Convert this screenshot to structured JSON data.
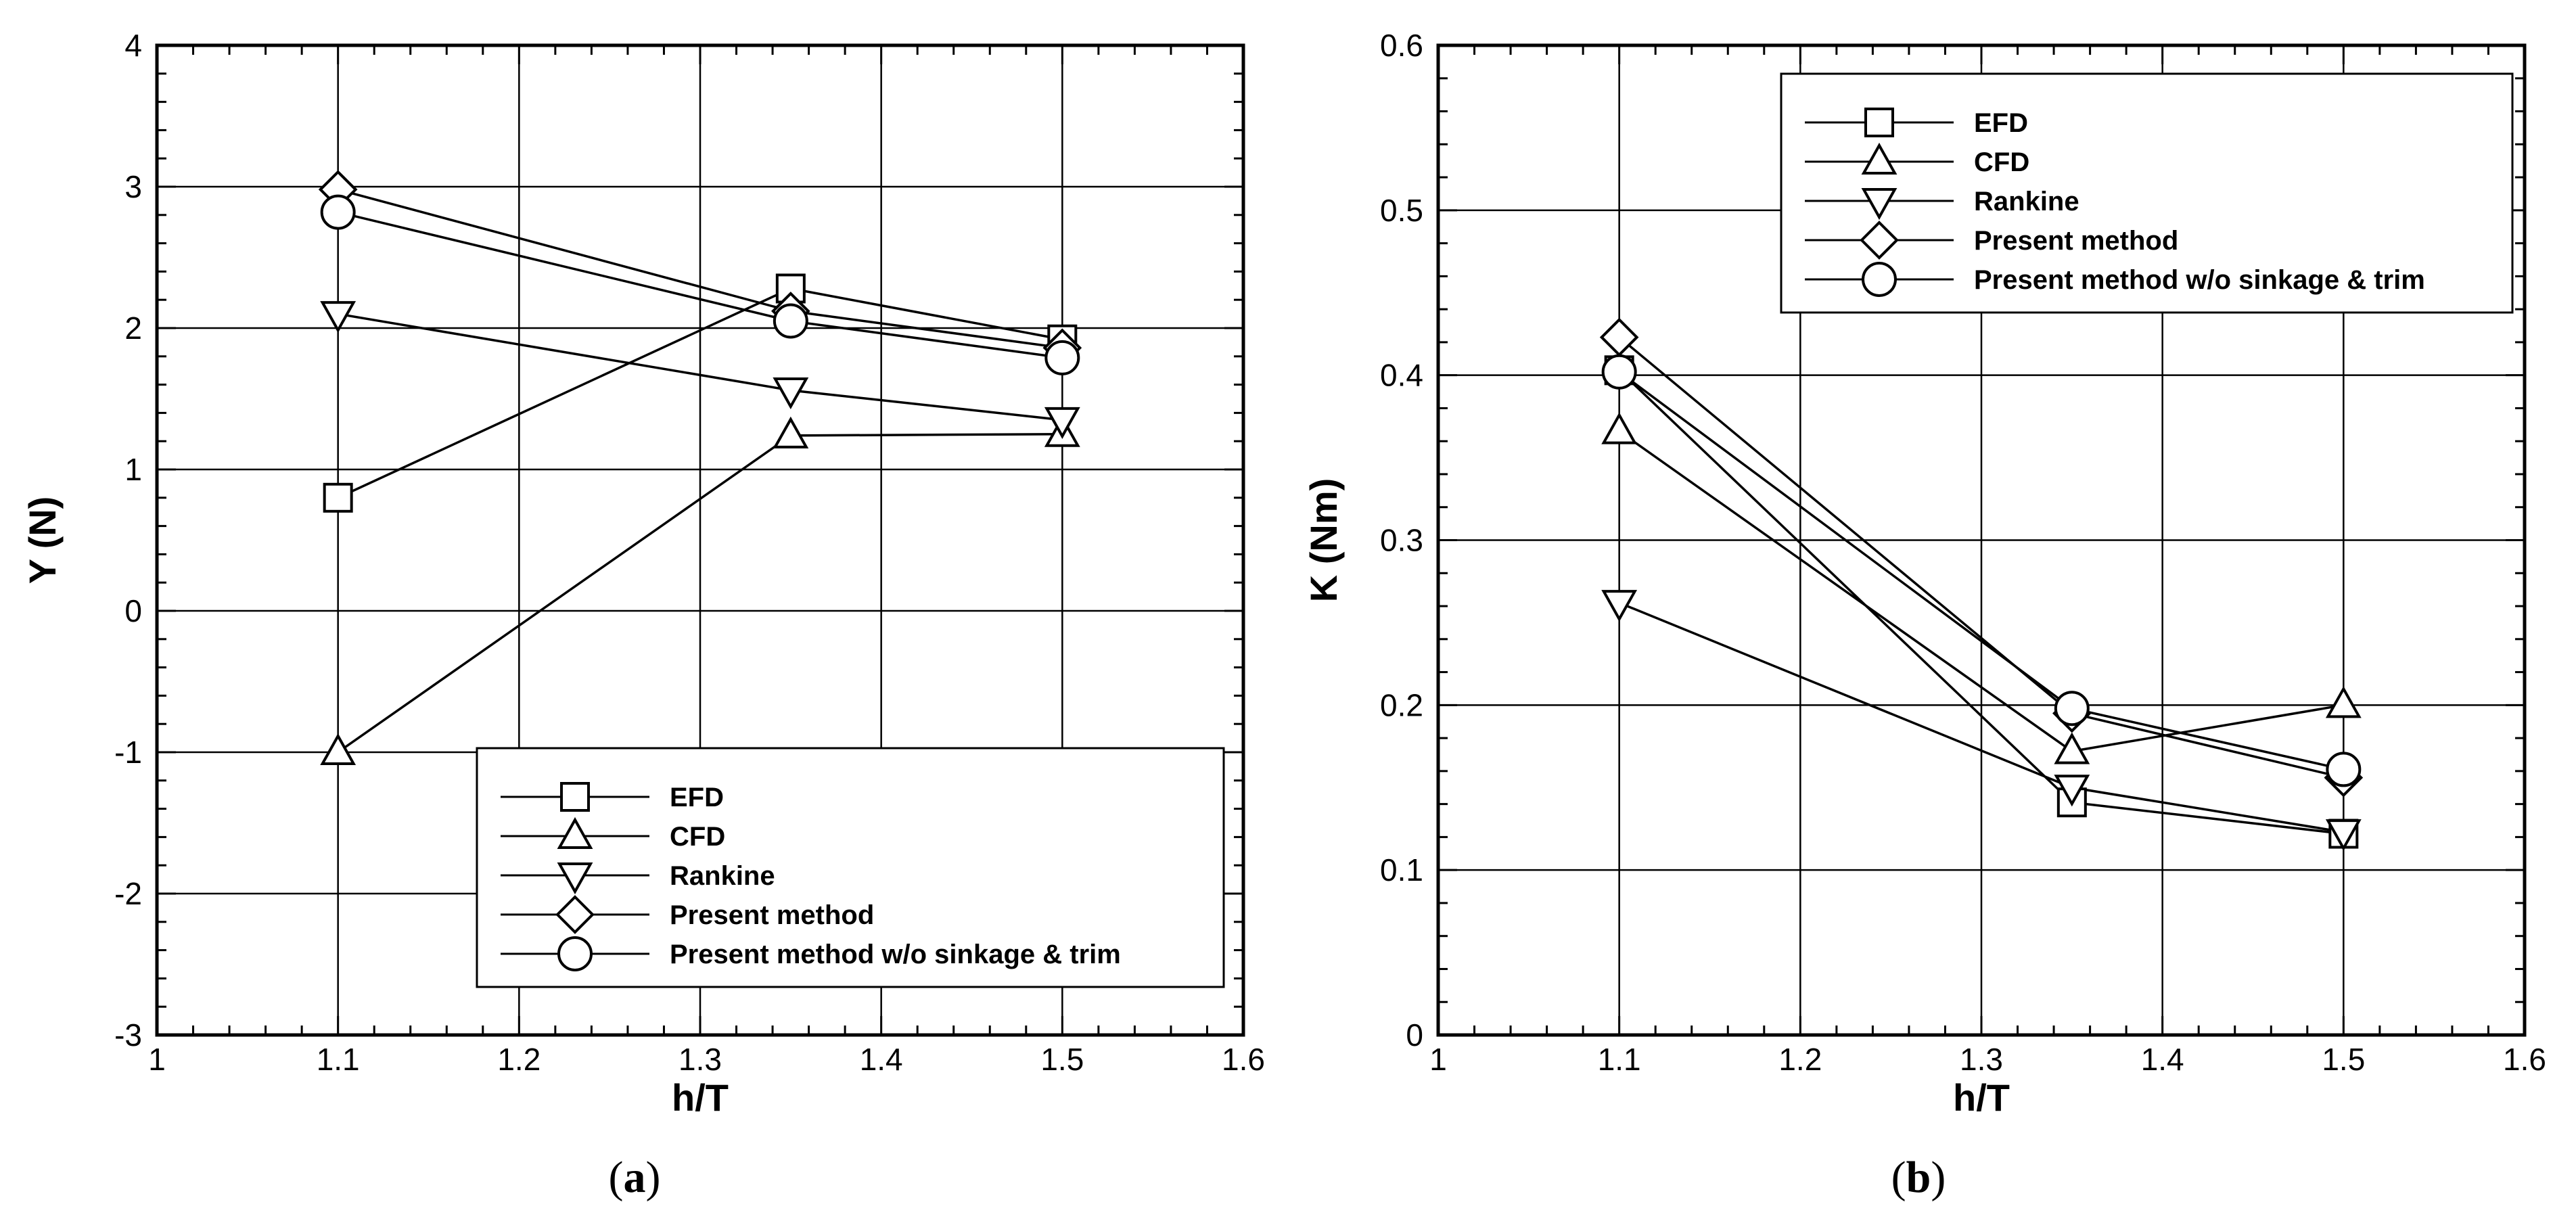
{
  "chart_data": [
    {
      "type": "line",
      "caption_letter": "a",
      "xlabel": "h/T",
      "ylabel": "Y (N)",
      "xlim": [
        1,
        1.6
      ],
      "ylim": [
        -3,
        4
      ],
      "xticks": [
        1,
        1.1,
        1.2,
        1.3,
        1.4,
        1.5,
        1.6
      ],
      "xtick_labels": [
        "1",
        "1.1",
        "1.2",
        "1.3",
        "1.4",
        "1.5",
        "1.6"
      ],
      "yticks": [
        -3,
        -2,
        -1,
        0,
        1,
        2,
        3,
        4
      ],
      "ytick_labels": [
        "-3",
        "-2",
        "-1",
        "0",
        "1",
        "2",
        "3",
        "4"
      ],
      "legend_position": "bottom-right",
      "x": [
        1.1,
        1.35,
        1.5
      ],
      "series": [
        {
          "name": "EFD",
          "marker": "square",
          "values": [
            0.8,
            2.28,
            1.92
          ]
        },
        {
          "name": "CFD",
          "marker": "triangle-up",
          "values": [
            -1.0,
            1.24,
            1.25
          ]
        },
        {
          "name": "Rankine",
          "marker": "triangle-down",
          "values": [
            2.1,
            1.56,
            1.35
          ]
        },
        {
          "name": "Present method",
          "marker": "diamond",
          "values": [
            2.98,
            2.12,
            1.86
          ]
        },
        {
          "name": "Present method w/o sinkage & trim",
          "marker": "circle",
          "values": [
            2.82,
            2.05,
            1.79
          ]
        }
      ]
    },
    {
      "type": "line",
      "caption_letter": "b",
      "xlabel": "h/T",
      "ylabel": "K (Nm)",
      "xlim": [
        1,
        1.6
      ],
      "ylim": [
        0,
        0.6
      ],
      "xticks": [
        1,
        1.1,
        1.2,
        1.3,
        1.4,
        1.5,
        1.6
      ],
      "xtick_labels": [
        "1",
        "1.1",
        "1.2",
        "1.3",
        "1.4",
        "1.5",
        "1.6"
      ],
      "yticks": [
        0,
        0.1,
        0.2,
        0.3,
        0.4,
        0.5,
        0.6
      ],
      "ytick_labels": [
        "0",
        "0.1",
        "0.2",
        "0.3",
        "0.4",
        "0.5",
        "0.6"
      ],
      "legend_position": "top-right",
      "x": [
        1.1,
        1.35,
        1.5
      ],
      "series": [
        {
          "name": "EFD",
          "marker": "square",
          "values": [
            0.403,
            0.141,
            0.122
          ]
        },
        {
          "name": "CFD",
          "marker": "triangle-up",
          "values": [
            0.366,
            0.172,
            0.2
          ]
        },
        {
          "name": "Rankine",
          "marker": "triangle-down",
          "values": [
            0.262,
            0.15,
            0.123
          ]
        },
        {
          "name": "Present method",
          "marker": "diamond",
          "values": [
            0.423,
            0.195,
            0.156
          ]
        },
        {
          "name": "Present method w/o sinkage & trim",
          "marker": "circle",
          "values": [
            0.402,
            0.198,
            0.161
          ]
        }
      ]
    }
  ]
}
